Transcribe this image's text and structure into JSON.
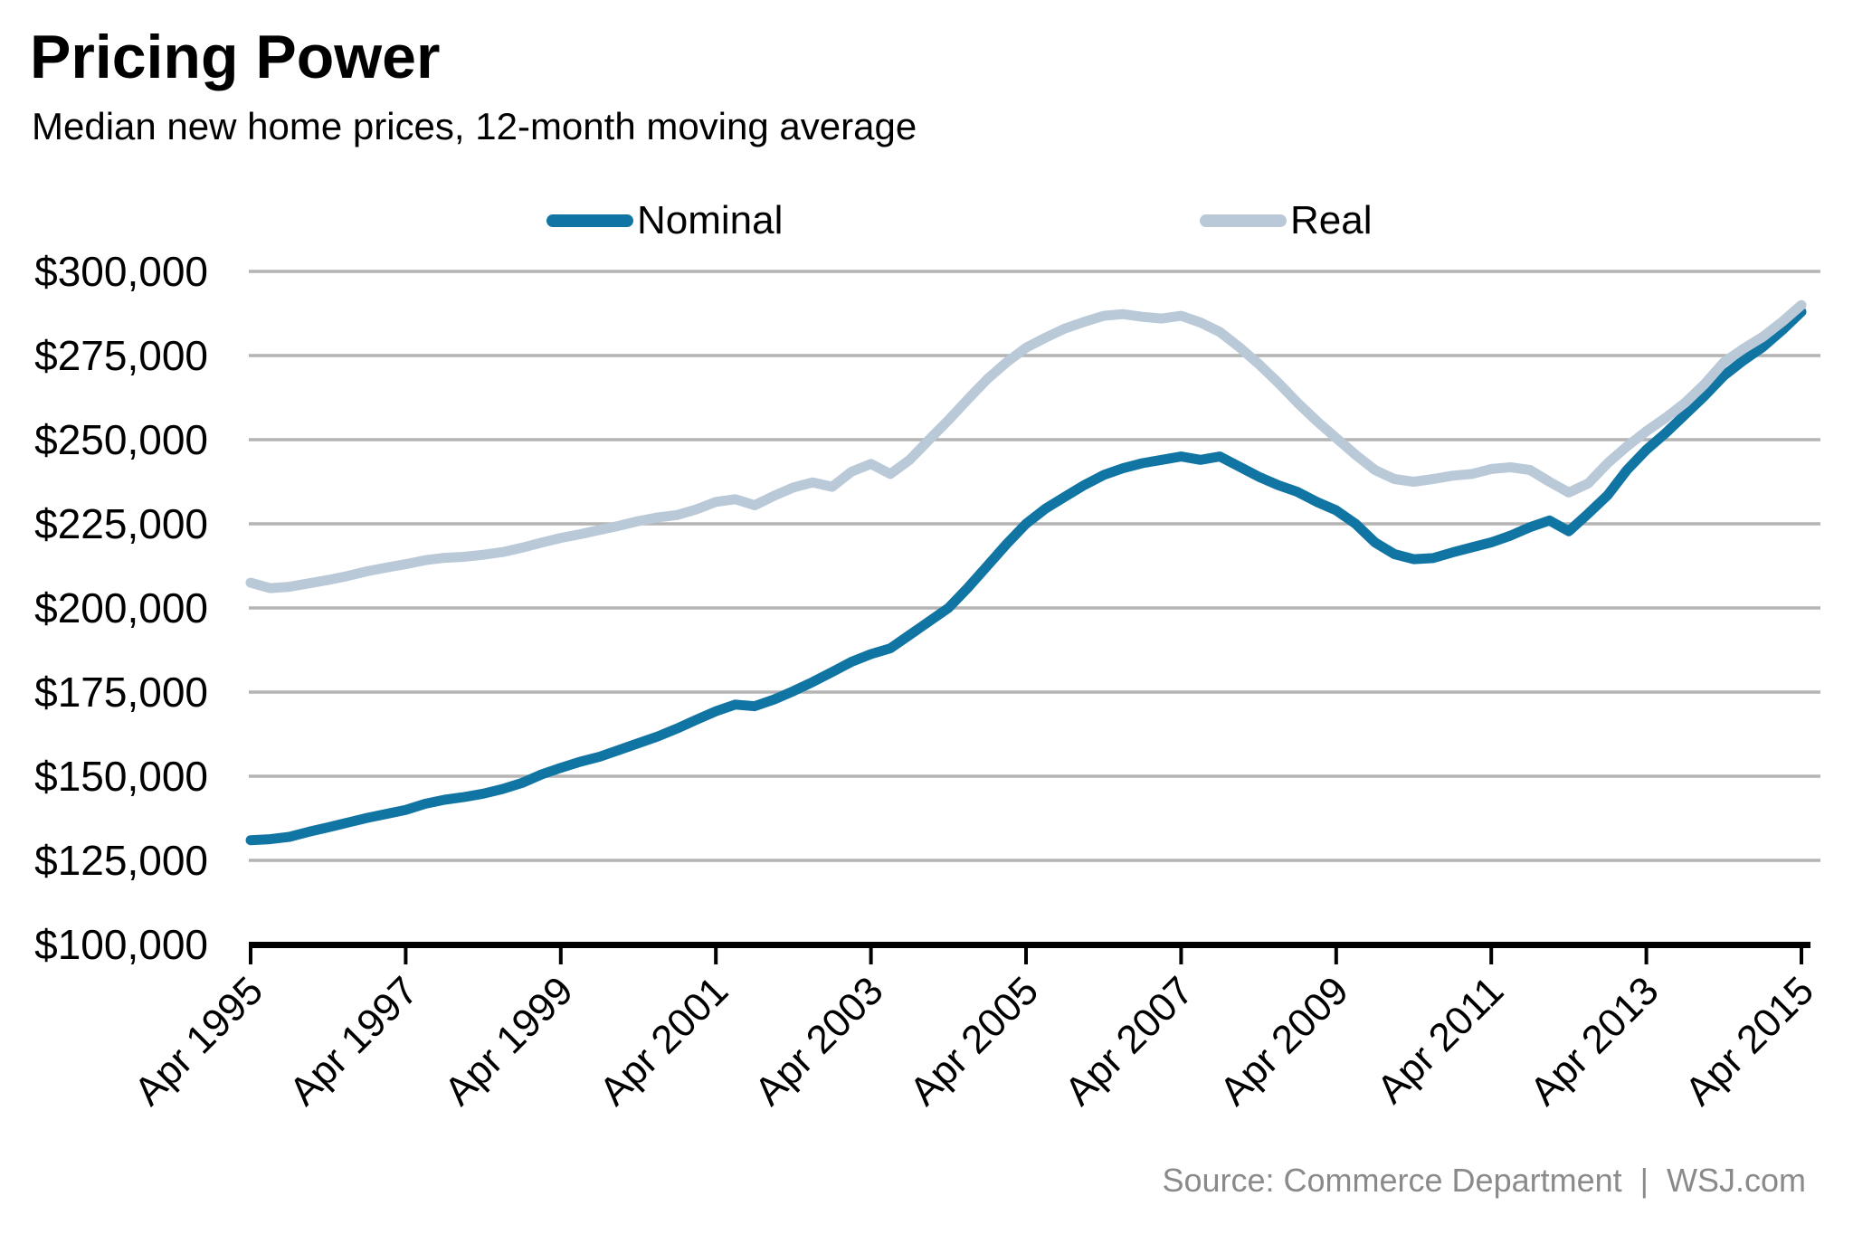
{
  "header": {
    "title": "Pricing Power",
    "subtitle": "Median new home prices, 12-month moving average"
  },
  "legend": [
    {
      "label": "Nominal",
      "color": "#1175a3"
    },
    {
      "label": "Real",
      "color": "#b9c9d8"
    }
  ],
  "source": "Source: Commerce Department  |  WSJ.com",
  "colors": {
    "gridline": "#b4b4b4",
    "axis": "#000000",
    "source_text": "#8a8a8a"
  },
  "chart_data": {
    "type": "line",
    "title": "Pricing Power",
    "subtitle": "Median new home prices, 12-month moving average",
    "x_unit": "quarterly from Apr 1995 to Apr 2015",
    "x_start_year_decimal": 1995.25,
    "x_step_years": 0.25,
    "x_tick_labels": [
      "Apr 1995",
      "Apr 1997",
      "Apr 1999",
      "Apr 2001",
      "Apr 2003",
      "Apr 2005",
      "Apr 2007",
      "Apr 2009",
      "Apr 2011",
      "Apr 2013",
      "Apr 2015"
    ],
    "ylim": [
      100000,
      300000
    ],
    "y_tick_step": 25000,
    "y_tick_labels": [
      "$100,000",
      "$125,000",
      "$150,000",
      "$175,000",
      "$200,000",
      "$225,000",
      "$250,000",
      "$275,000",
      "$300,000"
    ],
    "grid": "horizontal",
    "legend_position": "top",
    "series": [
      {
        "name": "Nominal",
        "color": "#1175a3",
        "values": [
          131000,
          131300,
          132000,
          133500,
          134800,
          136200,
          137600,
          138800,
          140000,
          141800,
          143000,
          143800,
          144800,
          146200,
          148000,
          150500,
          152500,
          154300,
          155800,
          157800,
          159800,
          161800,
          164200,
          166800,
          169300,
          171300,
          170800,
          172800,
          175300,
          178000,
          181000,
          184000,
          186300,
          188000,
          192000,
          196000,
          200000,
          206000,
          212500,
          219000,
          225000,
          229500,
          233000,
          236500,
          239500,
          241500,
          243000,
          244000,
          245000,
          244000,
          245000,
          242000,
          239000,
          236500,
          234500,
          231500,
          229000,
          225000,
          219500,
          216000,
          214500,
          214800,
          216500,
          218000,
          219500,
          221500,
          224000,
          226000,
          222800,
          228000,
          233500,
          241000,
          247000,
          252000,
          257500,
          263000,
          269000,
          273500,
          277500,
          282500,
          288000
        ]
      },
      {
        "name": "Real",
        "color": "#b9c9d8",
        "values": [
          207500,
          205900,
          206300,
          207300,
          208300,
          209500,
          210900,
          212000,
          213000,
          214200,
          214900,
          215200,
          215800,
          216600,
          217900,
          219400,
          220800,
          221900,
          223200,
          224400,
          225800,
          226900,
          227600,
          229300,
          231500,
          232300,
          230500,
          233300,
          235800,
          237300,
          236000,
          240500,
          242800,
          239800,
          244000,
          250000,
          255800,
          262000,
          268000,
          273000,
          277300,
          280300,
          283000,
          285000,
          286800,
          287300,
          286500,
          286000,
          286800,
          284800,
          282000,
          277500,
          272500,
          267000,
          261000,
          255500,
          250500,
          245500,
          241000,
          238300,
          237500,
          238300,
          239300,
          239800,
          241300,
          241800,
          241000,
          237500,
          234300,
          237000,
          243000,
          248000,
          252500,
          256500,
          261000,
          266500,
          273000,
          277000,
          280500,
          285000,
          290000
        ]
      }
    ]
  }
}
